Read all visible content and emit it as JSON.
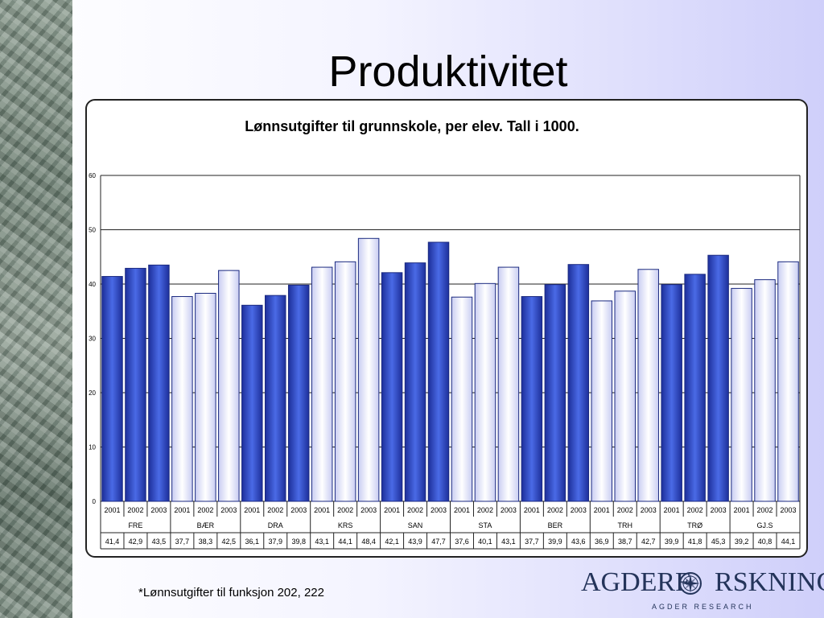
{
  "slide": {
    "title": "Produktivitet",
    "footnote": "*Lønnsutgifter til funksjon 202, 222"
  },
  "logo": {
    "name_left": "AGDERF",
    "name_right": "RSKNING",
    "tagline": "AGDER RESEARCH"
  },
  "colors": {
    "dark_bar": "#2f4fcc",
    "light_bar": "#f2f2ff",
    "logo": "#24345a"
  },
  "chart_data": {
    "type": "bar",
    "title": "Lønnsutgifter til grunnskole, per elev. Tall i 1000.",
    "ylim": [
      0,
      60
    ],
    "yticks": [
      0,
      10,
      20,
      30,
      40,
      50,
      60
    ],
    "grid": true,
    "years": [
      "2001",
      "2002",
      "2003"
    ],
    "groups": [
      {
        "name": "FRE",
        "style": "dark",
        "values": [
          41.4,
          42.9,
          43.5
        ],
        "labels": [
          "41,4",
          "42,9",
          "43,5"
        ]
      },
      {
        "name": "BÆR",
        "style": "light",
        "values": [
          37.7,
          38.3,
          42.5
        ],
        "labels": [
          "37,7",
          "38,3",
          "42,5"
        ]
      },
      {
        "name": "DRA",
        "style": "dark",
        "values": [
          36.1,
          37.9,
          39.8
        ],
        "labels": [
          "36,1",
          "37,9",
          "39,8"
        ]
      },
      {
        "name": "KRS",
        "style": "light",
        "values": [
          43.1,
          44.1,
          48.4
        ],
        "labels": [
          "43,1",
          "44,1",
          "48,4"
        ]
      },
      {
        "name": "SAN",
        "style": "dark",
        "values": [
          42.1,
          43.9,
          47.7
        ],
        "labels": [
          "42,1",
          "43,9",
          "47,7"
        ]
      },
      {
        "name": "STA",
        "style": "light",
        "values": [
          37.6,
          40.1,
          43.1
        ],
        "labels": [
          "37,6",
          "40,1",
          "43,1"
        ]
      },
      {
        "name": "BER",
        "style": "dark",
        "values": [
          37.7,
          39.9,
          43.6
        ],
        "labels": [
          "37,7",
          "39,9",
          "43,6"
        ]
      },
      {
        "name": "TRH",
        "style": "light",
        "values": [
          36.9,
          38.7,
          42.7
        ],
        "labels": [
          "36,9",
          "38,7",
          "42,7"
        ]
      },
      {
        "name": "TRØ",
        "style": "dark",
        "values": [
          39.9,
          41.8,
          45.3
        ],
        "labels": [
          "39,9",
          "41,8",
          "45,3"
        ]
      },
      {
        "name": "GJ.S",
        "style": "light",
        "values": [
          39.2,
          40.8,
          44.1
        ],
        "labels": [
          "39,2",
          "40,8",
          "44,1"
        ]
      }
    ]
  }
}
